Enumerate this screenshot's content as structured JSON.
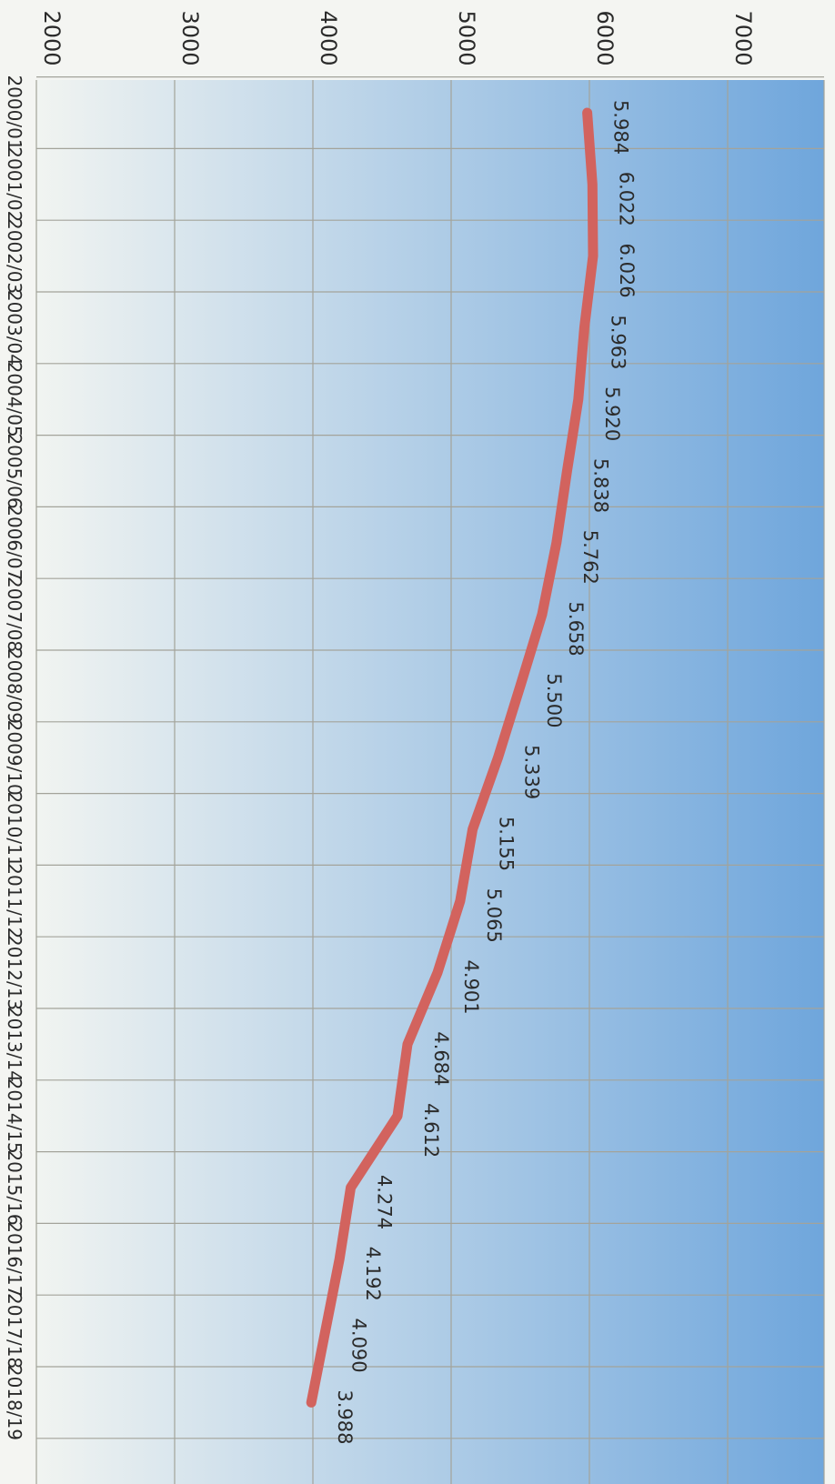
{
  "chart_data": {
    "type": "line",
    "title": "",
    "xlabel": "",
    "ylabel": "",
    "orientation": "rotated-90-clockwise",
    "categories": [
      "2000/01",
      "2001/02",
      "2002/03",
      "2003/04",
      "2004/05",
      "2005/06",
      "2006/07",
      "2007/08",
      "2008/09",
      "2009/10",
      "2010/11",
      "2011/12",
      "2012/13",
      "2013/14",
      "2014/15",
      "2015/16",
      "2016/17",
      "2017/18",
      "2018/19"
    ],
    "values": [
      5984,
      6022,
      6026,
      5963,
      5920,
      5838,
      5762,
      5658,
      5500,
      5339,
      5155,
      5065,
      4901,
      4684,
      4612,
      4274,
      4192,
      4090,
      3988
    ],
    "data_labels": [
      "5.984",
      "6.022",
      "6.026",
      "5.963",
      "5.920",
      "5.838",
      "5.762",
      "5.658",
      "5.500",
      "5.339",
      "5.155",
      "5.065",
      "4.901",
      "4.684",
      "4.612",
      "4.274",
      "4.192",
      "4.090",
      "3.988"
    ],
    "y_ticks": [
      "2000",
      "3000",
      "4000",
      "5000",
      "6000",
      "7000"
    ],
    "ylim": [
      2000,
      7500
    ],
    "grid": true,
    "legend": "none",
    "line_color": "#d2635e",
    "background_gradient": [
      "#f1f4f1",
      "#6fa6dc"
    ],
    "grid_color": "#a3a39a"
  }
}
